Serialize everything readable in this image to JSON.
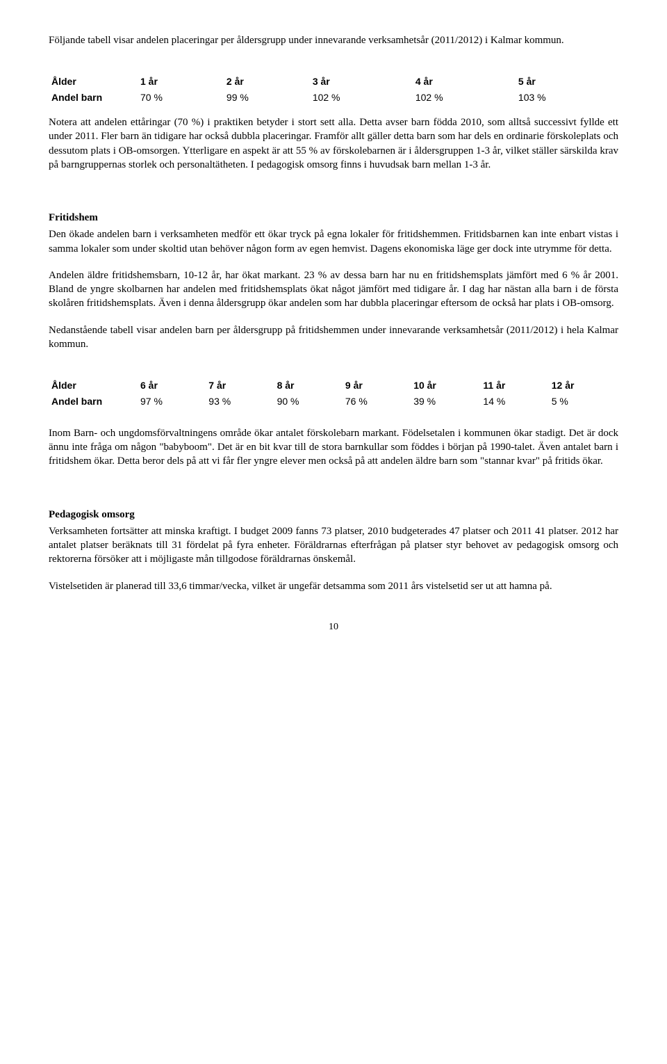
{
  "intro_para": "Följande tabell visar andelen placeringar per åldersgrupp under innevarande verksamhetsår (2011/2012) i Kalmar kommun.",
  "table1": {
    "header_label": "Ålder",
    "row_label": "Andel barn",
    "columns": [
      "1 år",
      "2 år",
      "3 år",
      "4 år",
      "5 år"
    ],
    "values": [
      "70 %",
      "99 %",
      "102 %",
      "102 %",
      "103 %"
    ]
  },
  "para_after_t1": "Notera att andelen ettåringar (70 %) i praktiken betyder i stort sett alla. Detta avser barn födda 2010, som alltså successivt fyllde ett under 2011. Fler barn än tidigare har också dubbla placeringar. Framför allt gäller detta barn som har dels en ordinarie förskoleplats och dessutom plats i OB-omsorgen. Ytterligare en aspekt är att 55 % av förskolebarnen är i åldersgruppen 1-3 år, vilket ställer särskilda krav på barngruppernas storlek och personaltätheten. I pedagogisk omsorg finns i huvudsak barn mellan 1-3 år.",
  "fritidshem": {
    "heading": "Fritidshem",
    "p1": "Den ökade andelen barn i verksamheten medför ett ökar tryck på egna lokaler för fritidshemmen. Fritidsbarnen kan inte enbart vistas i samma lokaler som under skoltid utan behöver någon form av egen hemvist. Dagens ekonomiska läge ger dock inte utrymme för detta.",
    "p2": "Andelen äldre fritidshemsbarn, 10-12 år, har ökat markant. 23 % av dessa barn har nu en fritidshemsplats jämfört med 6 % år 2001. Bland de yngre skolbarnen har andelen med fritidshemsplats ökat något jämfört med tidigare år. I dag har nästan alla barn i de första skolåren fritidshemsplats. Även i denna åldersgrupp ökar andelen som har dubbla placeringar eftersom de också har plats i OB-omsorg.",
    "p3": "Nedanstående tabell visar andelen barn per åldersgrupp på fritidshemmen under innevarande verksamhetsår (2011/2012) i hela Kalmar kommun."
  },
  "table2": {
    "header_label": "Ålder",
    "row_label": "Andel barn",
    "columns": [
      "6 år",
      "7 år",
      "8 år",
      "9 år",
      "10 år",
      "11 år",
      "12 år"
    ],
    "values": [
      "97 %",
      "93 %",
      "90 %",
      "76 %",
      "39 %",
      "14 %",
      "5 %"
    ]
  },
  "para_after_t2": "Inom Barn- och ungdomsförvaltningens område ökar antalet förskolebarn markant. Födelsetalen i kommunen ökar stadigt. Det är dock ännu inte fråga om någon \"babyboom\". Det är en bit kvar till de stora barnkullar som föddes i början på 1990-talet. Även antalet barn i fritidshem ökar. Detta beror dels på att vi får fler yngre elever men också på att andelen äldre barn som \"stannar kvar\" på fritids ökar.",
  "pedagogisk": {
    "heading": "Pedagogisk omsorg",
    "p1": "Verksamheten fortsätter att minska kraftigt. I budget 2009 fanns 73 platser, 2010 budgeterades 47 platser och 2011 41 platser. 2012 har antalet platser beräknats till 31 fördelat på fyra enheter. Föräldrarnas efterfrågan på platser styr behovet av pedagogisk omsorg och rektorerna försöker att i möjligaste mån tillgodose föräldrarnas önskemål.",
    "p2": "Vistelsetiden är planerad till 33,6 timmar/vecka, vilket är ungefär detsamma som 2011 års vistelsetid ser ut att hamna på."
  },
  "page_number": "10"
}
